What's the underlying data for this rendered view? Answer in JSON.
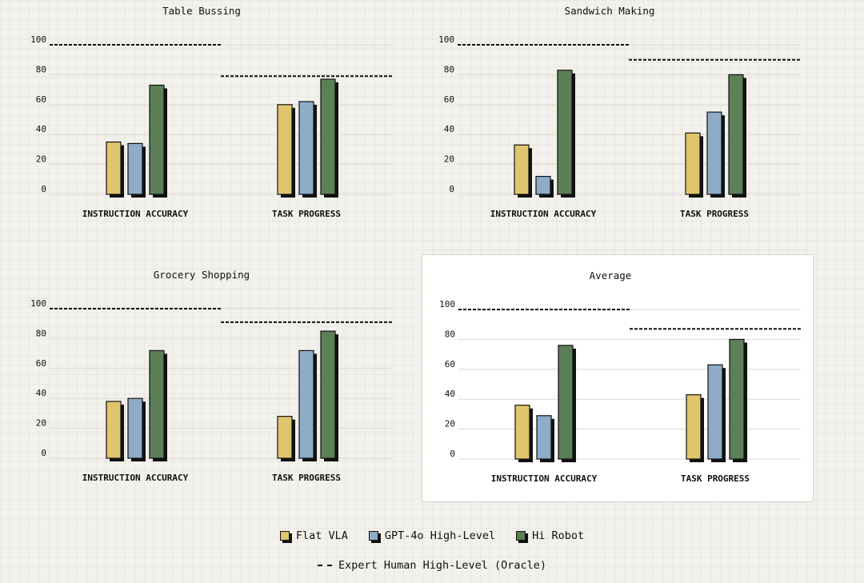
{
  "colors": {
    "flat_vla": "#e0c56e",
    "gpt4o": "#8eabc8",
    "hi_robot": "#5b7f56",
    "outline": "#111111",
    "grid": "#dcd9d2"
  },
  "legend": {
    "items": [
      {
        "label": "Flat VLA",
        "color": "#e0c56e"
      },
      {
        "label": "GPT-4o High-Level",
        "color": "#8eabc8"
      },
      {
        "label": "Hi Robot",
        "color": "#5b7f56"
      }
    ],
    "oracle_label": "Expert Human High-Level (Oracle)"
  },
  "chart_data": [
    {
      "type": "bar",
      "title": "Table Bussing",
      "categories": [
        "INSTRUCTION ACCURACY",
        "TASK PROGRESS"
      ],
      "series": [
        {
          "name": "Flat VLA",
          "values": [
            35,
            60
          ]
        },
        {
          "name": "GPT-4o High-Level",
          "values": [
            34,
            62
          ]
        },
        {
          "name": "Hi Robot",
          "values": [
            73,
            77
          ]
        }
      ],
      "oracle": [
        100,
        79
      ],
      "yticks": [
        0,
        20,
        40,
        60,
        80,
        100
      ],
      "ylim": [
        0,
        100
      ],
      "highlight": false
    },
    {
      "type": "bar",
      "title": "Sandwich Making",
      "categories": [
        "INSTRUCTION ACCURACY",
        "TASK PROGRESS"
      ],
      "series": [
        {
          "name": "Flat VLA",
          "values": [
            33,
            41
          ]
        },
        {
          "name": "GPT-4o High-Level",
          "values": [
            12,
            55
          ]
        },
        {
          "name": "Hi Robot",
          "values": [
            83,
            80
          ]
        }
      ],
      "oracle": [
        100,
        90
      ],
      "yticks": [
        0,
        20,
        40,
        60,
        80,
        100
      ],
      "ylim": [
        0,
        100
      ],
      "highlight": false
    },
    {
      "type": "bar",
      "title": "Grocery Shopping",
      "categories": [
        "INSTRUCTION ACCURACY",
        "TASK PROGRESS"
      ],
      "series": [
        {
          "name": "Flat VLA",
          "values": [
            38,
            28
          ]
        },
        {
          "name": "GPT-4o High-Level",
          "values": [
            40,
            72
          ]
        },
        {
          "name": "Hi Robot",
          "values": [
            72,
            85
          ]
        }
      ],
      "oracle": [
        100,
        91
      ],
      "yticks": [
        0,
        20,
        40,
        60,
        80,
        100
      ],
      "ylim": [
        0,
        100
      ],
      "highlight": false
    },
    {
      "type": "bar",
      "title": "Average",
      "categories": [
        "INSTRUCTION ACCURACY",
        "TASK PROGRESS"
      ],
      "series": [
        {
          "name": "Flat VLA",
          "values": [
            36,
            43
          ]
        },
        {
          "name": "GPT-4o High-Level",
          "values": [
            29,
            63
          ]
        },
        {
          "name": "Hi Robot",
          "values": [
            76,
            80
          ]
        }
      ],
      "oracle": [
        100,
        87
      ],
      "yticks": [
        0,
        20,
        40,
        60,
        80,
        100
      ],
      "ylim": [
        0,
        100
      ],
      "highlight": true
    }
  ]
}
